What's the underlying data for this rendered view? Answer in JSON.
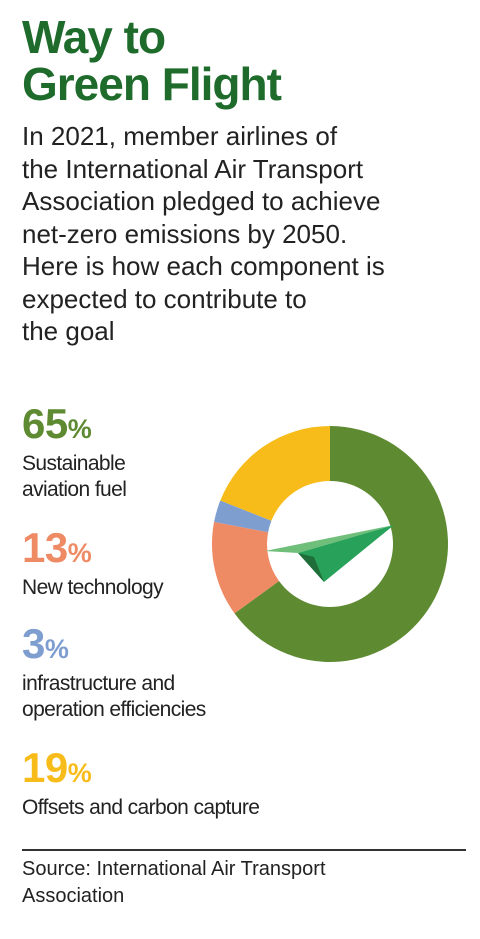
{
  "title": [
    "Way to",
    "Green Flight"
  ],
  "intro": [
    "In 2021, member airlines of",
    "the International Air Transport",
    "Association pledged to achieve",
    "net-zero emissions by 2050.",
    "Here is how each component is",
    "expected to contribute to",
    "the goal"
  ],
  "chart_data": {
    "type": "pie",
    "title": "Way to Green Flight",
    "style": "donut",
    "start_angle": "12 o'clock, clockwise",
    "slices": [
      {
        "label": "Sustainable aviation fuel",
        "value": 65,
        "color": "#5e8a32"
      },
      {
        "label": "New technology",
        "value": 13,
        "color": "#ee8a64"
      },
      {
        "label": "infrastructure and operation efficiencies",
        "value": 3,
        "color": "#7f9ed0"
      },
      {
        "label": "Offsets and carbon capture",
        "value": 19,
        "color": "#f8bc1a"
      }
    ],
    "center_graphic": "paper-plane-icon"
  },
  "legend": [
    {
      "value": "65",
      "sign": "%",
      "lines": [
        "Sustainable",
        "aviation fuel"
      ],
      "color": "#5e8a32"
    },
    {
      "value": "13",
      "sign": "%",
      "lines": [
        "New technology"
      ],
      "color": "#ee8a64"
    },
    {
      "value": "3",
      "sign": "%",
      "lines": [
        "infrastructure and",
        "operation efficiencies"
      ],
      "color": "#7f9ed0"
    },
    {
      "value": "19",
      "sign": "%",
      "lines": [
        "Offsets and carbon capture"
      ],
      "color": "#f8bc1a"
    }
  ],
  "source": [
    "Source: International Air Transport",
    "Association"
  ]
}
